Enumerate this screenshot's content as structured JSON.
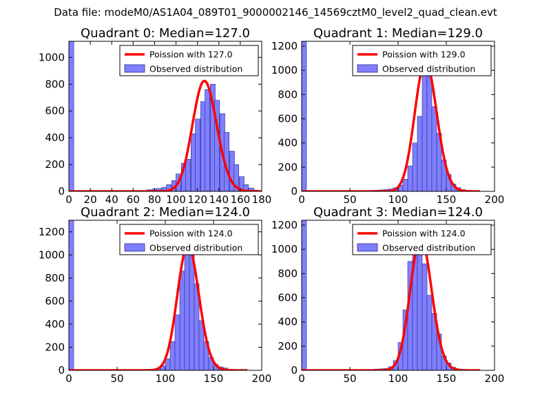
{
  "suptitle": "Data file: modeM0/AS1A04_089T01_9000002146_14569cztM0_level2_quad_clean.evt",
  "colors": {
    "bar_fill": "#7f7fff",
    "bar_edge": "#2a2a8c",
    "poisson_line": "#ff0000",
    "axes": "#000000"
  },
  "chart_data": [
    {
      "type": "bar",
      "quadrant": 0,
      "title": "Quadrant 0: Median=127.0",
      "median": 127.0,
      "xlim": [
        0,
        180
      ],
      "ylim": [
        0,
        1120
      ],
      "xticks": [
        0,
        20,
        40,
        60,
        80,
        100,
        120,
        140,
        160,
        180
      ],
      "yticks": [
        0,
        200,
        400,
        600,
        800,
        1000
      ],
      "bin_width": 4.6,
      "bins": [
        {
          "x": 0,
          "h": 1120
        },
        {
          "x": 73,
          "h": 12
        },
        {
          "x": 78,
          "h": 18
        },
        {
          "x": 82,
          "h": 22
        },
        {
          "x": 87,
          "h": 30
        },
        {
          "x": 91,
          "h": 50
        },
        {
          "x": 96,
          "h": 80
        },
        {
          "x": 100,
          "h": 130
        },
        {
          "x": 105,
          "h": 210
        },
        {
          "x": 109,
          "h": 240
        },
        {
          "x": 114,
          "h": 430
        },
        {
          "x": 118,
          "h": 540
        },
        {
          "x": 123,
          "h": 670
        },
        {
          "x": 127,
          "h": 760
        },
        {
          "x": 132,
          "h": 800
        },
        {
          "x": 136,
          "h": 680
        },
        {
          "x": 141,
          "h": 580
        },
        {
          "x": 145,
          "h": 440
        },
        {
          "x": 150,
          "h": 300
        },
        {
          "x": 154,
          "h": 200
        },
        {
          "x": 159,
          "h": 110
        },
        {
          "x": 163,
          "h": 50
        },
        {
          "x": 168,
          "h": 25
        },
        {
          "x": 172,
          "h": 10
        }
      ],
      "legend": {
        "line_label": "Poission with 127.0",
        "bar_label": "Observed distribution",
        "loc": "upper right"
      }
    },
    {
      "type": "bar",
      "quadrant": 1,
      "title": "Quadrant 1: Median=129.0",
      "median": 129.0,
      "xlim": [
        0,
        200
      ],
      "ylim": [
        0,
        1240
      ],
      "xticks": [
        0,
        50,
        100,
        150,
        200
      ],
      "yticks": [
        0,
        200,
        400,
        600,
        800,
        1000,
        1200
      ],
      "bin_width": 5,
      "bins": [
        {
          "x": 0,
          "h": 1240
        },
        {
          "x": 70,
          "h": 8
        },
        {
          "x": 75,
          "h": 10
        },
        {
          "x": 80,
          "h": 12
        },
        {
          "x": 85,
          "h": 15
        },
        {
          "x": 90,
          "h": 20
        },
        {
          "x": 95,
          "h": 30
        },
        {
          "x": 100,
          "h": 50
        },
        {
          "x": 105,
          "h": 100
        },
        {
          "x": 110,
          "h": 210
        },
        {
          "x": 115,
          "h": 400
        },
        {
          "x": 120,
          "h": 620
        },
        {
          "x": 125,
          "h": 1040
        },
        {
          "x": 130,
          "h": 950
        },
        {
          "x": 135,
          "h": 700
        },
        {
          "x": 140,
          "h": 480
        },
        {
          "x": 145,
          "h": 260
        },
        {
          "x": 150,
          "h": 140
        },
        {
          "x": 155,
          "h": 60
        },
        {
          "x": 160,
          "h": 30
        },
        {
          "x": 165,
          "h": 15
        },
        {
          "x": 170,
          "h": 8
        }
      ],
      "legend": {
        "line_label": "Poission with 129.0",
        "bar_label": "Observed distribution",
        "loc": "upper right"
      }
    },
    {
      "type": "bar",
      "quadrant": 2,
      "title": "Quadrant 2: Median=124.0",
      "median": 124.0,
      "xlim": [
        0,
        200
      ],
      "ylim": [
        0,
        1300
      ],
      "xticks": [
        0,
        50,
        100,
        150,
        200
      ],
      "yticks": [
        0,
        200,
        400,
        600,
        800,
        1000,
        1200
      ],
      "bin_width": 5,
      "bins": [
        {
          "x": 0,
          "h": 1300
        },
        {
          "x": 70,
          "h": 5
        },
        {
          "x": 80,
          "h": 8
        },
        {
          "x": 85,
          "h": 10
        },
        {
          "x": 90,
          "h": 15
        },
        {
          "x": 95,
          "h": 40
        },
        {
          "x": 100,
          "h": 100
        },
        {
          "x": 105,
          "h": 250
        },
        {
          "x": 110,
          "h": 480
        },
        {
          "x": 115,
          "h": 860
        },
        {
          "x": 120,
          "h": 1050
        },
        {
          "x": 125,
          "h": 1000
        },
        {
          "x": 130,
          "h": 750
        },
        {
          "x": 135,
          "h": 430
        },
        {
          "x": 140,
          "h": 250
        },
        {
          "x": 145,
          "h": 110
        },
        {
          "x": 150,
          "h": 50
        },
        {
          "x": 155,
          "h": 30
        },
        {
          "x": 160,
          "h": 20
        },
        {
          "x": 165,
          "h": 10
        },
        {
          "x": 170,
          "h": 5
        }
      ],
      "legend": {
        "line_label": "Poission with 124.0",
        "bar_label": "Observed distribution",
        "loc": "upper right"
      }
    },
    {
      "type": "bar",
      "quadrant": 3,
      "title": "Quadrant 3: Median=124.0",
      "median": 124.0,
      "xlim": [
        0,
        200
      ],
      "ylim": [
        0,
        1240
      ],
      "xticks": [
        0,
        50,
        100,
        150,
        200
      ],
      "yticks": [
        0,
        200,
        400,
        600,
        800,
        1000,
        1200
      ],
      "bin_width": 5,
      "bins": [
        {
          "x": 0,
          "h": 1240
        },
        {
          "x": 20,
          "h": 5
        },
        {
          "x": 35,
          "h": 5
        },
        {
          "x": 55,
          "h": 5
        },
        {
          "x": 75,
          "h": 10
        },
        {
          "x": 80,
          "h": 12
        },
        {
          "x": 85,
          "h": 15
        },
        {
          "x": 90,
          "h": 30
        },
        {
          "x": 95,
          "h": 80
        },
        {
          "x": 100,
          "h": 230
        },
        {
          "x": 105,
          "h": 500
        },
        {
          "x": 110,
          "h": 900
        },
        {
          "x": 115,
          "h": 1020
        },
        {
          "x": 120,
          "h": 1060
        },
        {
          "x": 125,
          "h": 880
        },
        {
          "x": 130,
          "h": 620
        },
        {
          "x": 135,
          "h": 470
        },
        {
          "x": 140,
          "h": 300
        },
        {
          "x": 145,
          "h": 120
        },
        {
          "x": 150,
          "h": 60
        },
        {
          "x": 155,
          "h": 25
        },
        {
          "x": 160,
          "h": 10
        },
        {
          "x": 165,
          "h": 5
        }
      ],
      "legend": {
        "line_label": "Poission with 124.0",
        "bar_label": "Observed distribution",
        "loc": "upper right"
      }
    }
  ]
}
